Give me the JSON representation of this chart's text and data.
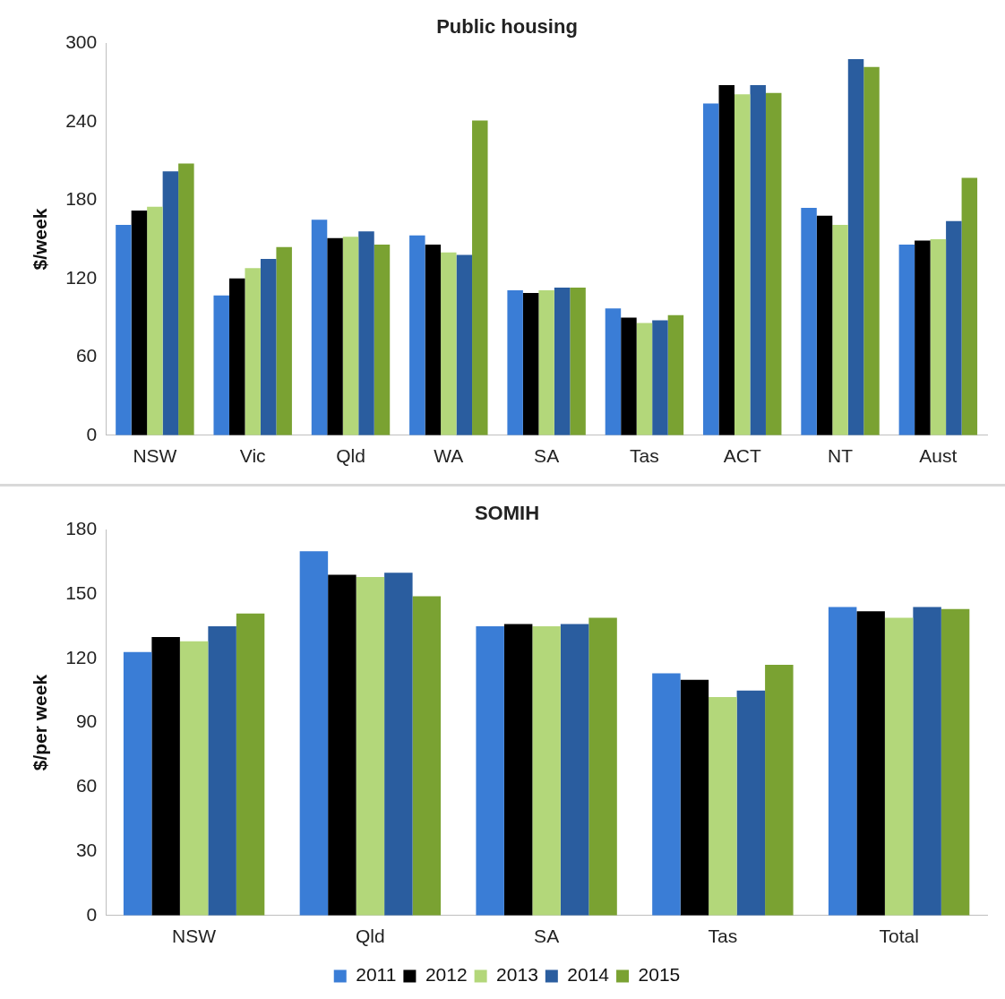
{
  "chart_data": [
    {
      "type": "bar",
      "title": "Public housing",
      "ylabel": "$/week",
      "categories": [
        "NSW",
        "Vic",
        "Qld",
        "WA",
        "SA",
        "Tas",
        "ACT",
        "NT",
        "Aust"
      ],
      "series": [
        {
          "color": "#3a7dd6",
          "values": [
            161,
            107,
            165,
            153,
            111,
            97,
            254,
            174,
            146
          ]
        },
        {
          "color": "#000000",
          "values": [
            172,
            120,
            151,
            146,
            109,
            90,
            268,
            168,
            149
          ]
        },
        {
          "color": "#b3d77a",
          "values": [
            175,
            128,
            152,
            140,
            111,
            86,
            261,
            161,
            150
          ]
        },
        {
          "color": "#2a5d9f",
          "values": [
            202,
            135,
            156,
            138,
            113,
            88,
            268,
            288,
            164
          ]
        },
        {
          "color": "#7aa232",
          "values": [
            208,
            144,
            146,
            241,
            113,
            92,
            262,
            282,
            197
          ]
        }
      ],
      "ylim": [
        0,
        300
      ],
      "yticks": [
        0,
        60,
        120,
        180,
        240,
        300
      ],
      "grid": false,
      "legend": false
    },
    {
      "type": "bar",
      "title": "SOMIH",
      "ylabel": "$/per week",
      "categories": [
        "NSW",
        "Qld",
        "SA",
        "Tas",
        "Total"
      ],
      "series": [
        {
          "name": "2011",
          "color": "#3a7dd6",
          "values": [
            123,
            170,
            135,
            113,
            144
          ]
        },
        {
          "name": "2012",
          "color": "#000000",
          "values": [
            130,
            159,
            136,
            110,
            142
          ]
        },
        {
          "name": "2013",
          "color": "#b3d77a",
          "values": [
            128,
            158,
            135,
            102,
            139
          ]
        },
        {
          "name": "2014",
          "color": "#2a5d9f",
          "values": [
            135,
            160,
            136,
            105,
            144
          ]
        },
        {
          "name": "2015",
          "color": "#7aa232",
          "values": [
            141,
            149,
            139,
            117,
            143
          ]
        }
      ],
      "ylim": [
        0,
        180
      ],
      "yticks": [
        0,
        30,
        60,
        90,
        120,
        150,
        180
      ],
      "grid": false,
      "legend": "bottom"
    }
  ]
}
